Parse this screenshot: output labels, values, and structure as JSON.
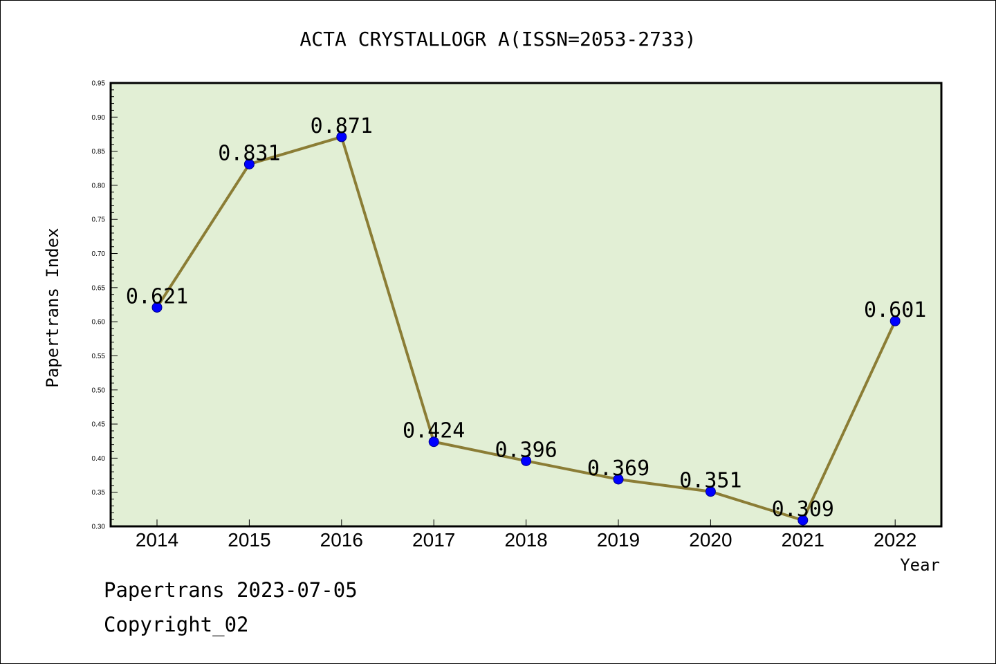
{
  "chart_data": {
    "type": "line",
    "title": "ACTA CRYSTALLOGR A(ISSN=2053-2733)",
    "xlabel": "Year",
    "ylabel": "Papertrans Index",
    "x": [
      "2014",
      "2015",
      "2016",
      "2017",
      "2018",
      "2019",
      "2020",
      "2021",
      "2022"
    ],
    "series": [
      {
        "values": [
          0.621,
          0.831,
          0.871,
          0.424,
          0.396,
          0.369,
          0.351,
          0.309,
          0.601
        ]
      }
    ],
    "data_labels": [
      "0.621",
      "0.831",
      "0.871",
      "0.424",
      "0.396",
      "0.369",
      "0.351",
      "0.309",
      "0.601"
    ],
    "ylim": [
      0.3,
      0.95
    ],
    "yticks": [
      "0.30",
      "0.35",
      "0.40",
      "0.45",
      "0.50",
      "0.55",
      "0.60",
      "0.65",
      "0.70",
      "0.75",
      "0.80",
      "0.85",
      "0.90",
      "0.95"
    ],
    "grid": false,
    "colors": {
      "line": "#8b7d35",
      "marker": "#0000ff",
      "plot_background": "#e2efd5"
    }
  },
  "footer": {
    "line1": "Papertrans 2023-07-05",
    "line2": "Copyright_02"
  }
}
